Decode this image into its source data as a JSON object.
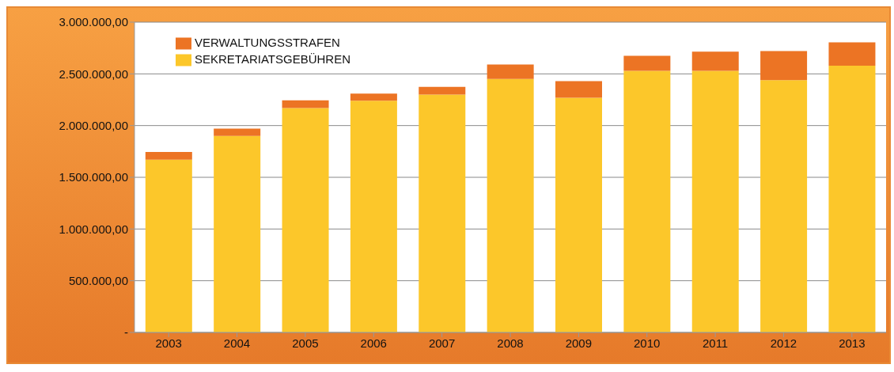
{
  "chart_data": {
    "type": "bar",
    "stacked": true,
    "categories": [
      "2003",
      "2004",
      "2005",
      "2006",
      "2007",
      "2008",
      "2009",
      "2010",
      "2011",
      "2012",
      "2013"
    ],
    "series": [
      {
        "name": "SEKRETARIATSGEBÜHREN",
        "color": "#fcc72a",
        "values": [
          1670000,
          1900000,
          2170000,
          2240000,
          2300000,
          2450000,
          2270000,
          2530000,
          2530000,
          2440000,
          2580000
        ]
      },
      {
        "name": "VERWALTUNGSSTRAFEN",
        "color": "#ec7424",
        "values": [
          75000,
          70000,
          75000,
          70000,
          75000,
          140000,
          160000,
          145000,
          185000,
          280000,
          225000
        ]
      }
    ],
    "ylim": [
      0,
      3000000
    ],
    "yticks": [
      {
        "value": 0,
        "label": "-"
      },
      {
        "value": 500000,
        "label": "500.000,00"
      },
      {
        "value": 1000000,
        "label": "1.000.000,00"
      },
      {
        "value": 1500000,
        "label": "1.500.000,00"
      },
      {
        "value": 2000000,
        "label": "2.000.000,00"
      },
      {
        "value": 2500000,
        "label": "2.500.000,00"
      },
      {
        "value": 3000000,
        "label": "3.000.000,00"
      }
    ],
    "grid": "y",
    "legend": "top left"
  }
}
